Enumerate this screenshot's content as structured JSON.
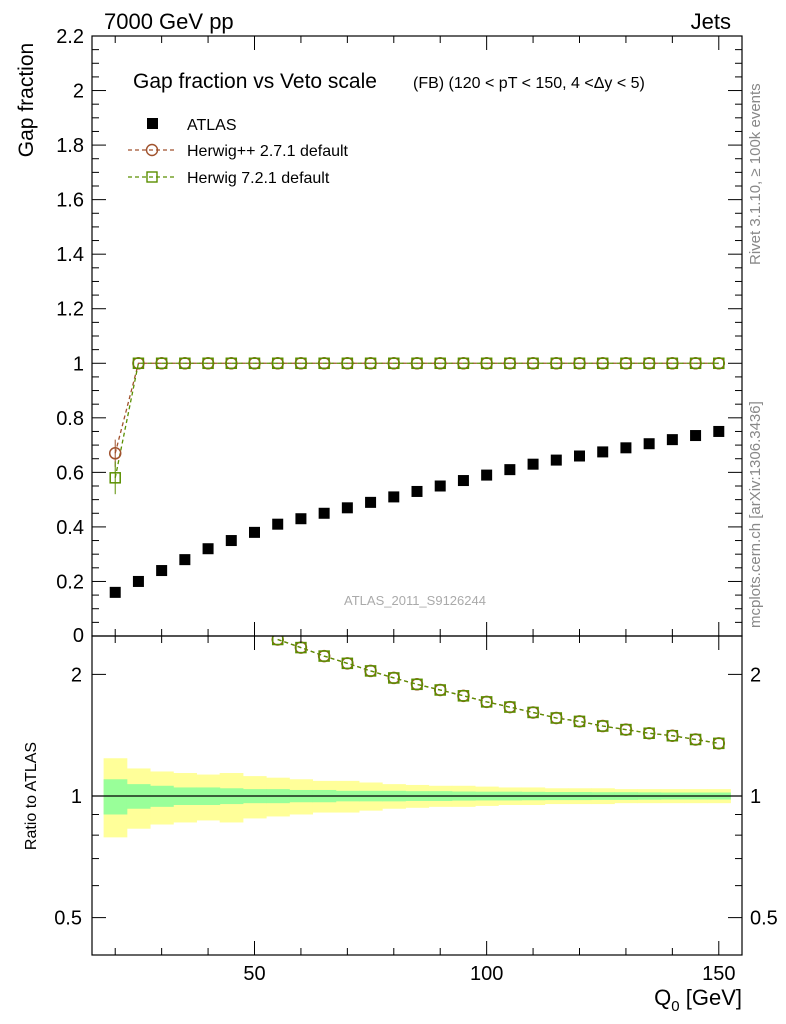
{
  "header": {
    "left": "7000 GeV pp",
    "right": "Jets"
  },
  "main": {
    "title": "Gap fraction vs Veto scale",
    "subtitle": "(FB) (120 < pT < 150, 4 <Δy < 5)",
    "ylabel": "Gap fraction",
    "watermark": "ATLAS_2011_S9126244"
  },
  "ratio": {
    "ylabel": "Ratio to ATLAS"
  },
  "xaxis": {
    "label_main": "Q",
    "label_sub": "0",
    "label_unit": " [GeV]"
  },
  "side": {
    "rivet": "Rivet 3.1.10, ≥ 100k events",
    "mcplots": "mcplots.cern.ch [arXiv:1306.3436]"
  },
  "colors": {
    "atlas": "#000000",
    "herwigpp": "#a0522d",
    "herwig7": "#5a8f00",
    "band_inner": "#99ff99",
    "band_outer": "#ffff99"
  },
  "chart_data": [
    {
      "type": "scatter",
      "title": "Gap fraction vs Veto scale",
      "ylabel": "Gap fraction",
      "xlim": [
        15,
        155
      ],
      "ylim": [
        0,
        2.2
      ],
      "yticks": [
        0.2,
        0.4,
        0.6,
        0.8,
        1,
        1.2,
        1.4,
        1.6,
        1.8,
        2,
        2.2
      ],
      "ytick_labels": [
        "0.2",
        "0.4",
        "0.6",
        "0.8",
        "1",
        "1.2",
        "1.4",
        "1.6",
        "1.8",
        "2",
        "2.2"
      ],
      "ytick_zero": "0",
      "legend_position": "top-left",
      "series": [
        {
          "name": "ATLAS",
          "marker": "filled-square",
          "x": [
            20,
            25,
            30,
            35,
            40,
            45,
            50,
            55,
            60,
            65,
            70,
            75,
            80,
            85,
            90,
            95,
            100,
            105,
            110,
            115,
            120,
            125,
            130,
            135,
            140,
            145,
            150
          ],
          "y": [
            0.16,
            0.2,
            0.24,
            0.28,
            0.32,
            0.35,
            0.38,
            0.41,
            0.43,
            0.45,
            0.47,
            0.49,
            0.51,
            0.53,
            0.55,
            0.57,
            0.59,
            0.61,
            0.63,
            0.645,
            0.66,
            0.675,
            0.69,
            0.705,
            0.72,
            0.735,
            0.75
          ]
        },
        {
          "name": "Herwig++ 2.7.1 default",
          "marker": "open-circle",
          "x": [
            20,
            25,
            30,
            35,
            40,
            45,
            50,
            55,
            60,
            65,
            70,
            75,
            80,
            85,
            90,
            95,
            100,
            105,
            110,
            115,
            120,
            125,
            130,
            135,
            140,
            145,
            150
          ],
          "y": [
            0.67,
            1,
            1,
            1,
            1,
            1,
            1,
            1,
            1,
            1,
            1,
            1,
            1,
            1,
            1,
            1,
            1,
            1,
            1,
            1,
            1,
            1,
            1,
            1,
            1,
            1,
            1
          ]
        },
        {
          "name": "Herwig 7.2.1 default",
          "marker": "open-square",
          "x": [
            20,
            25,
            30,
            35,
            40,
            45,
            50,
            55,
            60,
            65,
            70,
            75,
            80,
            85,
            90,
            95,
            100,
            105,
            110,
            115,
            120,
            125,
            130,
            135,
            140,
            145,
            150
          ],
          "y": [
            0.58,
            1,
            1,
            1,
            1,
            1,
            1,
            1,
            1,
            1,
            1,
            1,
            1,
            1,
            1,
            1,
            1,
            1,
            1,
            1,
            1,
            1,
            1,
            1,
            1,
            1,
            1
          ]
        }
      ]
    },
    {
      "type": "scatter",
      "ylabel": "Ratio to ATLAS",
      "xlabel": "Q0 [GeV]",
      "xlim": [
        15,
        155
      ],
      "ylim": [
        0.4,
        2.4
      ],
      "yscale": "log",
      "xticks": [
        50,
        100,
        150
      ],
      "xtick_labels": [
        "50",
        "100",
        "150"
      ],
      "yticks": [
        0.5,
        1,
        2
      ],
      "ytick_labels": [
        "0.5",
        "1",
        "2"
      ],
      "bands": {
        "x_edges": [
          17.5,
          22.5,
          27.5,
          32.5,
          37.5,
          42.5,
          47.5,
          52.5,
          57.5,
          62.5,
          67.5,
          72.5,
          77.5,
          82.5,
          87.5,
          92.5,
          97.5,
          102.5,
          107.5,
          112.5,
          117.5,
          122.5,
          127.5,
          132.5,
          137.5,
          142.5,
          147.5,
          152.5
        ],
        "inner_low": [
          0.9,
          0.93,
          0.94,
          0.95,
          0.95,
          0.955,
          0.96,
          0.96,
          0.965,
          0.965,
          0.97,
          0.97,
          0.97,
          0.972,
          0.972,
          0.974,
          0.975,
          0.975,
          0.976,
          0.977,
          0.977,
          0.978,
          0.978,
          0.979,
          0.98,
          0.98,
          0.98
        ],
        "inner_high": [
          1.1,
          1.07,
          1.06,
          1.05,
          1.05,
          1.045,
          1.04,
          1.04,
          1.035,
          1.035,
          1.03,
          1.03,
          1.03,
          1.028,
          1.028,
          1.026,
          1.025,
          1.025,
          1.024,
          1.023,
          1.023,
          1.022,
          1.022,
          1.021,
          1.02,
          1.02,
          1.02
        ],
        "outer_low": [
          0.79,
          0.83,
          0.85,
          0.86,
          0.87,
          0.86,
          0.88,
          0.89,
          0.9,
          0.91,
          0.91,
          0.92,
          0.93,
          0.935,
          0.94,
          0.94,
          0.945,
          0.95,
          0.95,
          0.955,
          0.955,
          0.955,
          0.96,
          0.96,
          0.96,
          0.96,
          0.96
        ],
        "outer_high": [
          1.24,
          1.17,
          1.15,
          1.14,
          1.13,
          1.14,
          1.12,
          1.11,
          1.1,
          1.09,
          1.09,
          1.08,
          1.07,
          1.065,
          1.06,
          1.06,
          1.055,
          1.05,
          1.05,
          1.045,
          1.045,
          1.045,
          1.04,
          1.04,
          1.04,
          1.04,
          1.04
        ]
      },
      "series": [
        {
          "name": "Herwig++ 2.7.1 default",
          "marker": "open-circle",
          "x": [
            55,
            60,
            65,
            70,
            75,
            80,
            85,
            90,
            95,
            100,
            105,
            110,
            115,
            120,
            125,
            130,
            135,
            140,
            145,
            150
          ],
          "y": [
            2.44,
            2.33,
            2.22,
            2.13,
            2.04,
            1.96,
            1.89,
            1.83,
            1.77,
            1.71,
            1.66,
            1.61,
            1.56,
            1.53,
            1.49,
            1.46,
            1.43,
            1.41,
            1.38,
            1.35
          ]
        },
        {
          "name": "Herwig 7.2.1 default",
          "marker": "open-square",
          "x": [
            55,
            60,
            65,
            70,
            75,
            80,
            85,
            90,
            95,
            100,
            105,
            110,
            115,
            120,
            125,
            130,
            135,
            140,
            145,
            150
          ],
          "y": [
            2.44,
            2.33,
            2.22,
            2.13,
            2.04,
            1.96,
            1.89,
            1.83,
            1.77,
            1.71,
            1.66,
            1.61,
            1.56,
            1.53,
            1.49,
            1.46,
            1.43,
            1.41,
            1.38,
            1.35
          ]
        }
      ]
    }
  ]
}
